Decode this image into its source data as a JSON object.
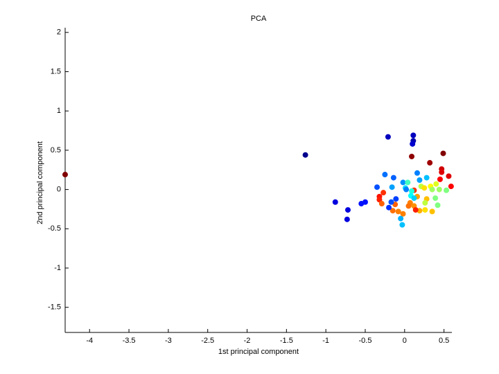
{
  "chart_data": {
    "type": "scatter",
    "title": "PCA",
    "x_label": "1st principal component",
    "y_label": "2nd principal component",
    "x": [
      -4.31,
      -1.26,
      -0.88,
      -0.72,
      -0.73,
      -0.55,
      -0.5,
      -0.35,
      -0.21,
      0.11,
      0.11,
      0.1,
      0.09,
      0.49,
      0.32,
      0.47,
      0.47,
      0.56,
      0.59,
      0.45,
      -0.25,
      -0.14,
      0.16,
      0.19,
      0.28,
      -0.16,
      -0.02,
      0.04,
      0.01,
      0.12,
      0.09,
      0.21,
      0.25,
      0.33,
      0.4,
      0.35,
      0.44,
      0.53,
      0.39,
      0.42,
      0.28,
      0.16,
      0.07,
      0.05,
      0.12,
      0.19,
      0.26,
      0.35,
      0.14,
      0.08,
      0.12,
      0.26,
      -0.32,
      -0.32,
      -0.27,
      -0.29,
      -0.12,
      -0.15,
      -0.08,
      -0.02,
      -0.11,
      -0.17,
      -0.2,
      -0.05,
      -0.03,
      0.02
    ],
    "values": [
      0.19,
      0.44,
      -0.16,
      -0.26,
      -0.38,
      -0.18,
      -0.16,
      0.03,
      0.67,
      0.69,
      0.62,
      0.58,
      0.42,
      0.46,
      0.34,
      0.26,
      0.22,
      0.17,
      0.04,
      0.13,
      0.19,
      0.15,
      0.21,
      0.12,
      0.15,
      0.03,
      0.09,
      0.09,
      0.02,
      -0.01,
      -0.02,
      0.04,
      0.02,
      0.04,
      0.07,
      0.0,
      0.0,
      -0.01,
      -0.11,
      -0.2,
      -0.12,
      -0.09,
      -0.17,
      -0.21,
      -0.21,
      -0.27,
      -0.26,
      -0.28,
      -0.26,
      -0.08,
      -0.11,
      -0.17,
      -0.09,
      -0.13,
      -0.04,
      -0.18,
      -0.19,
      -0.27,
      -0.28,
      -0.31,
      -0.12,
      -0.16,
      -0.23,
      -0.37,
      -0.45,
      0.0
    ],
    "colors": [
      "#800000",
      "#00008f",
      "#0000df",
      "#0000df",
      "#0000df",
      "#0010ff",
      "#0010ff",
      "#0050ff",
      "#0000bf",
      "#0000bf",
      "#0000af",
      "#0000cf",
      "#8f0000",
      "#800000",
      "#9f0000",
      "#cf0000",
      "#df0000",
      "#df0000",
      "#ff0000",
      "#ff0000",
      "#0070ff",
      "#0060ff",
      "#0080ff",
      "#00a0ff",
      "#00c0ff",
      "#00a0ff",
      "#0090ff",
      "#40ffbf",
      "#00e0ff",
      "#ff3000",
      "#20ffdf",
      "#c0ff40",
      "#ffe000",
      "#ffff00",
      "#dfff20",
      "#a0ff60",
      "#9fff60",
      "#80ff80",
      "#80ff80",
      "#80ff80",
      "#ffc000",
      "#ffa000",
      "#ff8000",
      "#ff7000",
      "#ff9000",
      "#ffb000",
      "#ffe000",
      "#ffc000",
      "#ff2000",
      "#00ffff",
      "#00d0ff",
      "#c0ff40",
      "#ff1000",
      "#ff2000",
      "#ff3000",
      "#ff6000",
      "#ff6000",
      "#ff7000",
      "#ff8000",
      "#ff8000",
      "#0040ff",
      "#0050ff",
      "#0030ff",
      "#00b0ff",
      "#00c0ff",
      "#0080ff"
    ],
    "xlim": [
      -4.31,
      0.6
    ],
    "ylim": [
      -1.82,
      2.06
    ],
    "xticks": [
      -4,
      -3.5,
      -3,
      -2.5,
      -2,
      -1.5,
      -1,
      -0.5,
      0,
      0.5
    ],
    "yticks": [
      -1.5,
      -1,
      -0.5,
      0,
      0.5,
      1,
      1.5,
      2
    ]
  }
}
